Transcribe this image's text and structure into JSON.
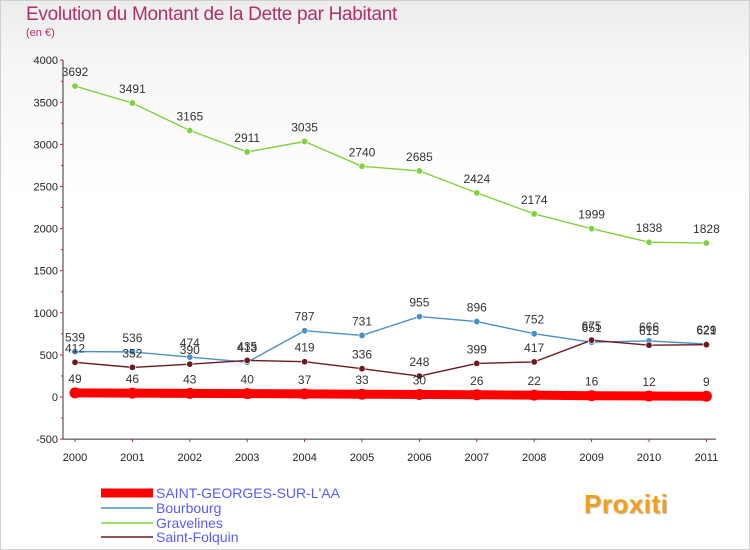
{
  "header": {
    "title": "Evolution du Montant de la Dette par Habitant",
    "subtitle": "(en €)"
  },
  "logo": {
    "text": "Proxiti",
    "colors": [
      "#e8a317",
      "#3aa0d8",
      "#8ac43f"
    ]
  },
  "chart_data": {
    "type": "line",
    "x": [
      "2000",
      "2001",
      "2002",
      "2003",
      "2004",
      "2005",
      "2006",
      "2007",
      "2008",
      "2009",
      "2010",
      "2011"
    ],
    "ylim": [
      -500,
      4000
    ],
    "yticks": [
      -500,
      0,
      500,
      1000,
      1500,
      2000,
      2500,
      3000,
      3500,
      4000
    ],
    "grid": false,
    "legend_position": "bottom-left",
    "series": [
      {
        "name": "SAINT-GEORGES-SUR-L'AA",
        "color": "#ff0000",
        "values": [
          49,
          46,
          43,
          40,
          37,
          33,
          30,
          26,
          22,
          16,
          12,
          9
        ]
      },
      {
        "name": "Bourbourg",
        "color": "#4a90c8",
        "values": [
          539,
          536,
          474,
          413,
          787,
          731,
          955,
          896,
          752,
          651,
          666,
          629
        ]
      },
      {
        "name": "Gravelines",
        "color": "#80d040",
        "values": [
          3692,
          3491,
          3165,
          2911,
          3035,
          2740,
          2685,
          2424,
          2174,
          1999,
          1838,
          1828
        ]
      },
      {
        "name": "Saint-Folquin",
        "color": "#6b1a22",
        "values": [
          412,
          352,
          390,
          435,
          419,
          336,
          248,
          399,
          417,
          675,
          615,
          621
        ]
      }
    ]
  }
}
